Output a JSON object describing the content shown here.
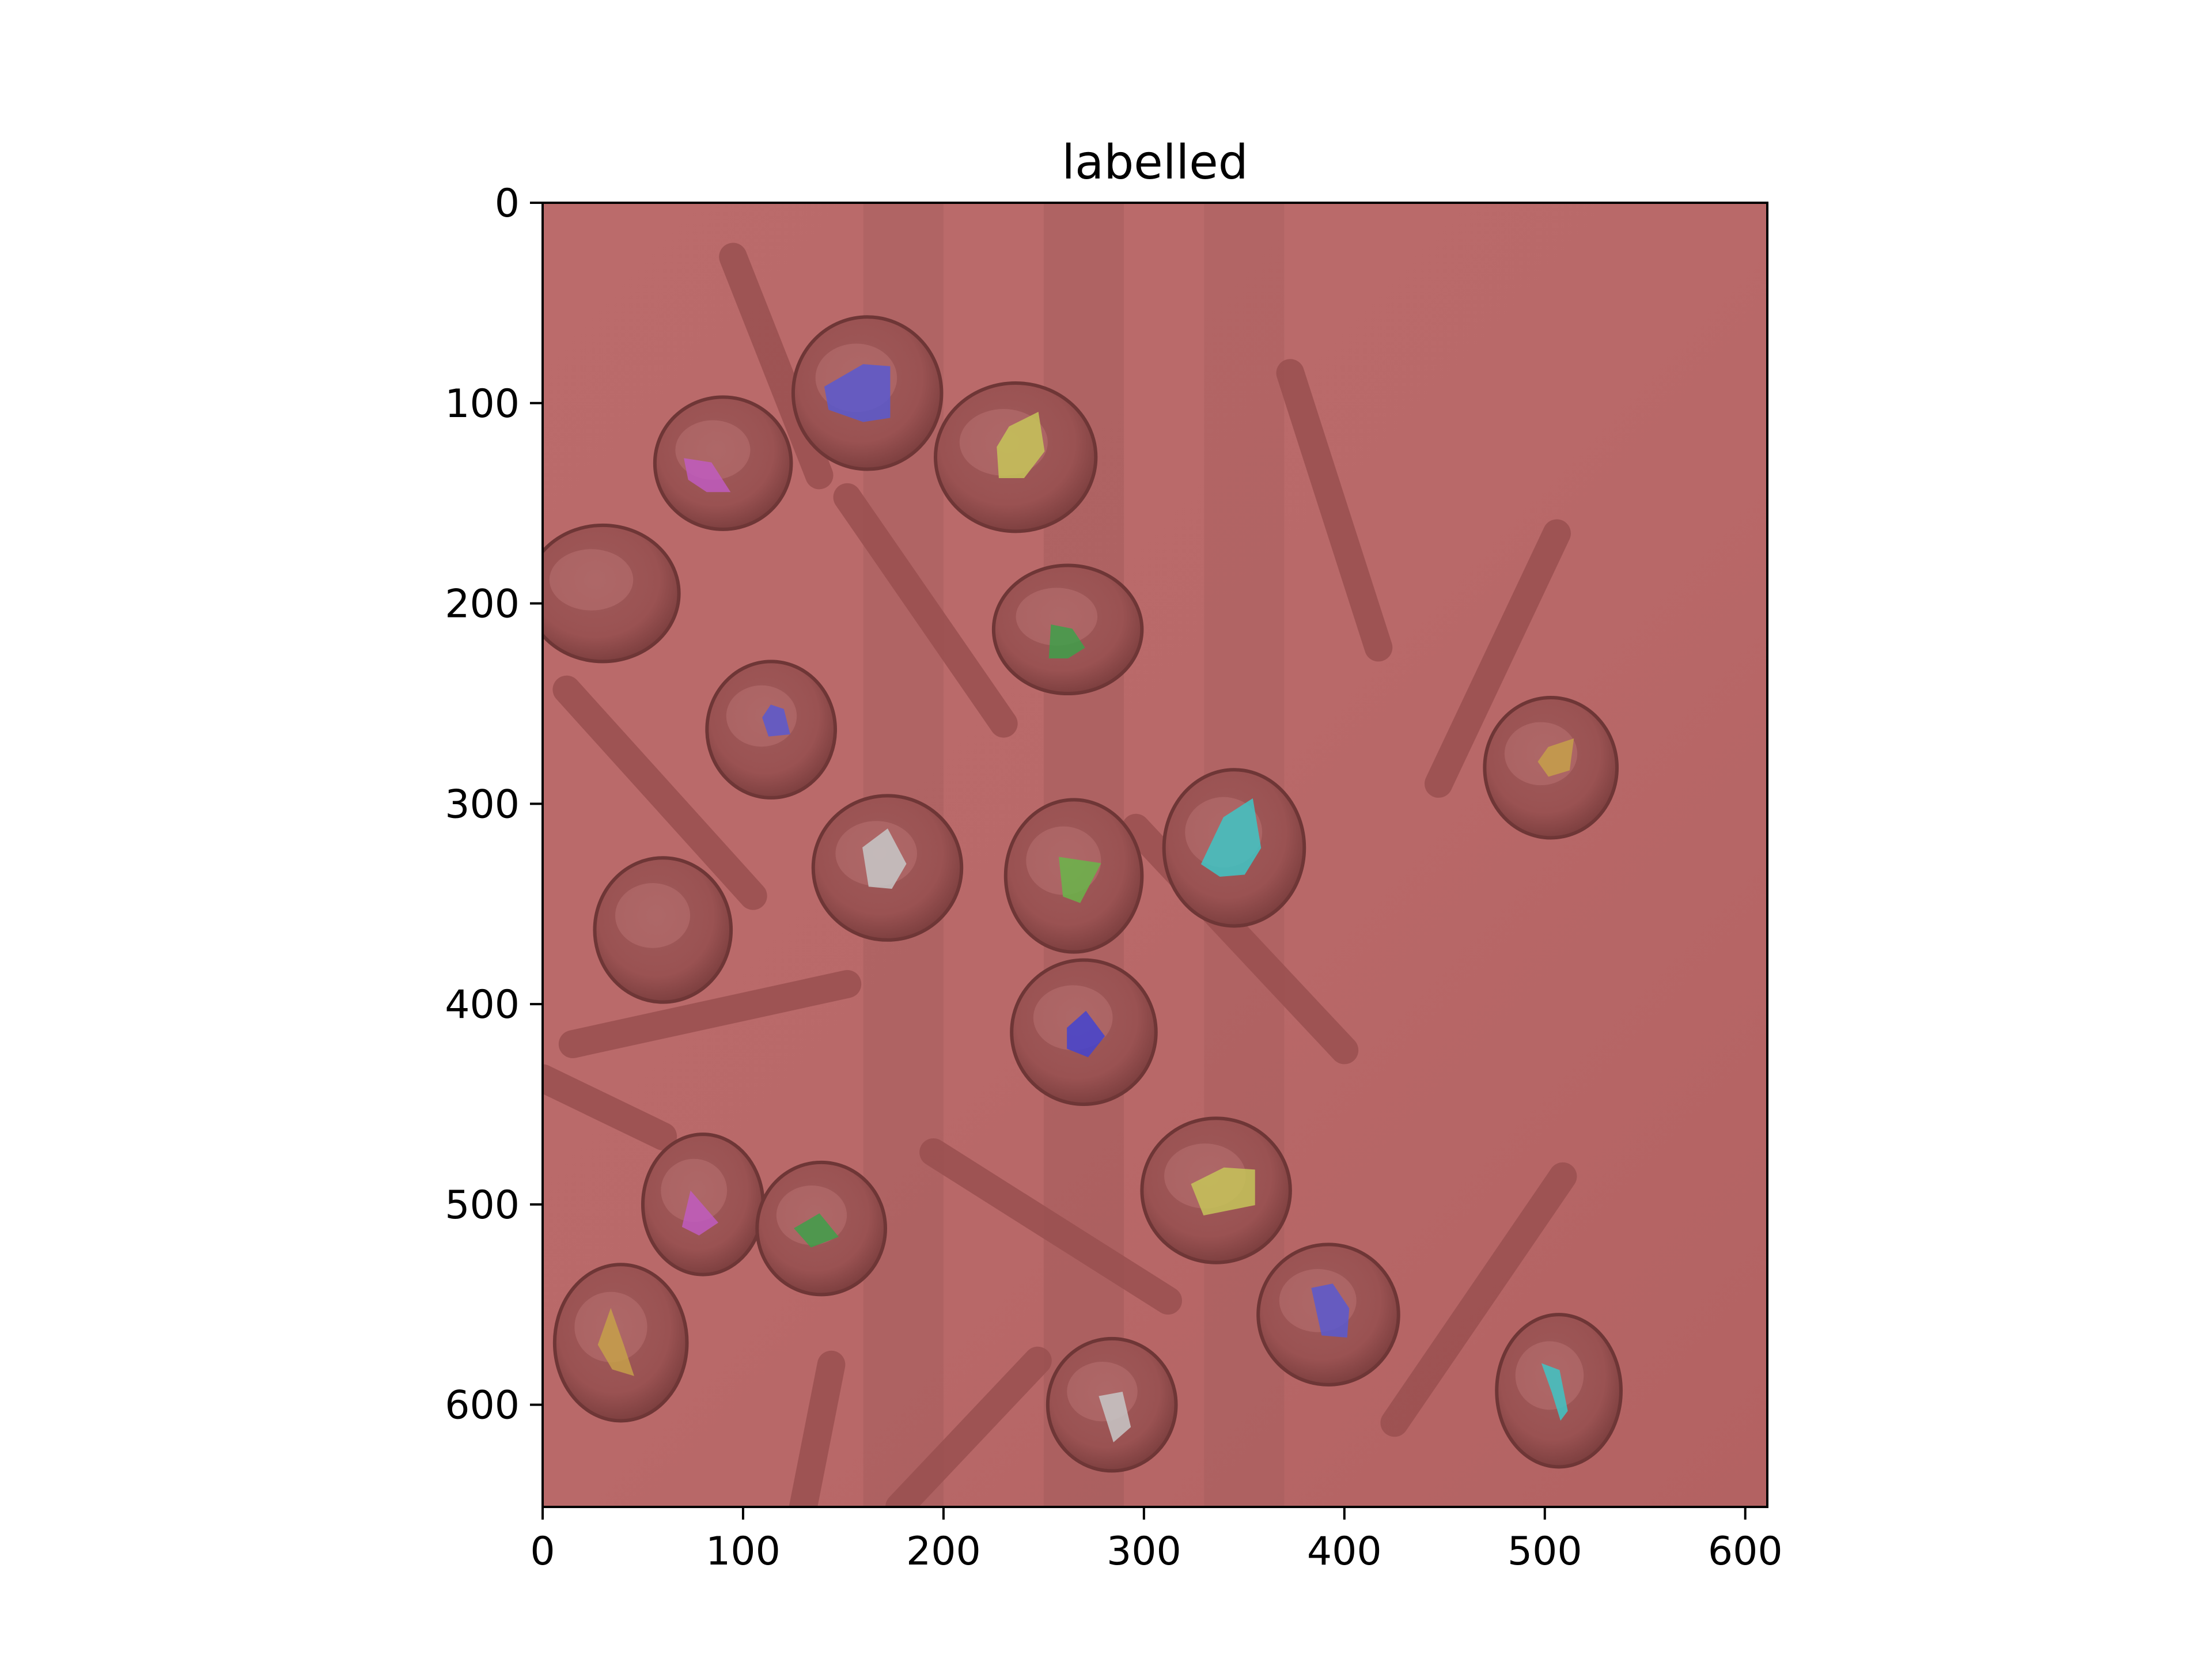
{
  "chart_data": {
    "type": "image",
    "title": "labelled",
    "xlabel": "",
    "ylabel": "",
    "xlim": [
      0,
      611
    ],
    "ylim": [
      651,
      0
    ],
    "x_ticks": [
      0,
      100,
      200,
      300,
      400,
      500,
      600
    ],
    "x_tick_labels": [
      "0",
      "100",
      "200",
      "300",
      "400",
      "500",
      "600"
    ],
    "y_ticks": [
      0,
      100,
      200,
      300,
      400,
      500,
      600
    ],
    "y_tick_labels": [
      "0",
      "100",
      "200",
      "300",
      "400",
      "500",
      "600"
    ],
    "grid": false,
    "background_label_color": "#b86767",
    "seeds": [
      {
        "cx": 90,
        "cy": 130,
        "rx": 34,
        "ry": 33
      },
      {
        "cx": 162,
        "cy": 95,
        "rx": 37,
        "ry": 38
      },
      {
        "cx": 236,
        "cy": 127,
        "rx": 40,
        "ry": 37
      },
      {
        "cx": 30,
        "cy": 195,
        "rx": 38,
        "ry": 34
      },
      {
        "cx": 262,
        "cy": 213,
        "rx": 37,
        "ry": 32
      },
      {
        "cx": 114,
        "cy": 263,
        "rx": 32,
        "ry": 34
      },
      {
        "cx": 503,
        "cy": 282,
        "rx": 33,
        "ry": 35
      },
      {
        "cx": 172,
        "cy": 332,
        "rx": 37,
        "ry": 36
      },
      {
        "cx": 265,
        "cy": 336,
        "rx": 34,
        "ry": 38
      },
      {
        "cx": 345,
        "cy": 322,
        "rx": 35,
        "ry": 39
      },
      {
        "cx": 60,
        "cy": 363,
        "rx": 34,
        "ry": 36
      },
      {
        "cx": 270,
        "cy": 414,
        "rx": 36,
        "ry": 36
      },
      {
        "cx": 80,
        "cy": 500,
        "rx": 30,
        "ry": 35
      },
      {
        "cx": 139,
        "cy": 512,
        "rx": 32,
        "ry": 33
      },
      {
        "cx": 336,
        "cy": 493,
        "rx": 37,
        "ry": 36
      },
      {
        "cx": 39,
        "cy": 569,
        "rx": 33,
        "ry": 39
      },
      {
        "cx": 392,
        "cy": 555,
        "rx": 35,
        "ry": 35
      },
      {
        "cx": 284,
        "cy": 600,
        "rx": 32,
        "ry": 33
      },
      {
        "cx": 507,
        "cy": 593,
        "rx": 31,
        "ry": 38
      }
    ],
    "rods": [
      {
        "x1": 95,
        "y1": 27,
        "x2": 138,
        "y2": 136
      },
      {
        "x1": 152,
        "y1": 147,
        "x2": 230,
        "y2": 260
      },
      {
        "x1": 373,
        "y1": 85,
        "x2": 417,
        "y2": 222
      },
      {
        "x1": 506,
        "y1": 165,
        "x2": 447,
        "y2": 290
      },
      {
        "x1": 12,
        "y1": 243,
        "x2": 105,
        "y2": 346
      },
      {
        "x1": 296,
        "y1": 312,
        "x2": 400,
        "y2": 423
      },
      {
        "x1": 15,
        "y1": 420,
        "x2": 152,
        "y2": 390
      },
      {
        "x1": 0,
        "y1": 437,
        "x2": 60,
        "y2": 466
      },
      {
        "x1": 195,
        "y1": 474,
        "x2": 312,
        "y2": 548
      },
      {
        "x1": 509,
        "y1": 486,
        "x2": 425,
        "y2": 609
      },
      {
        "x1": 144,
        "y1": 580,
        "x2": 130,
        "y2": 651
      },
      {
        "x1": 247,
        "y1": 578,
        "x2": 178,
        "y2": 651
      }
    ],
    "labelled_regions": [
      {
        "color": "#5a5ad0",
        "points": [
          [
            141,
            92
          ],
          [
            160,
            81
          ],
          [
            173,
            82
          ],
          [
            173,
            107
          ],
          [
            160,
            109
          ],
          [
            143,
            103
          ]
        ]
      },
      {
        "color": "#c6c55a",
        "points": [
          [
            233,
            112
          ],
          [
            247,
            105
          ],
          [
            250,
            124
          ],
          [
            240,
            137
          ],
          [
            228,
            137
          ],
          [
            227,
            122
          ]
        ]
      },
      {
        "color": "#c05cc0",
        "points": [
          [
            71,
            128
          ],
          [
            84,
            130
          ],
          [
            93,
            144
          ],
          [
            82,
            144
          ],
          [
            73,
            138
          ]
        ]
      },
      {
        "color": "#3fa04a",
        "points": [
          [
            254,
            211
          ],
          [
            264,
            213
          ],
          [
            270,
            222
          ],
          [
            262,
            227
          ],
          [
            253,
            227
          ]
        ]
      },
      {
        "color": "#5a5ad0",
        "points": [
          [
            114,
            251
          ],
          [
            120,
            253
          ],
          [
            123,
            265
          ],
          [
            113,
            266
          ],
          [
            110,
            257
          ]
        ]
      },
      {
        "color": "#c6a04a",
        "points": [
          [
            502,
            272
          ],
          [
            514,
            268
          ],
          [
            512,
            283
          ],
          [
            502,
            286
          ],
          [
            497,
            279
          ]
        ]
      },
      {
        "color": "#c8c8c8",
        "points": [
          [
            160,
            322
          ],
          [
            172,
            313
          ],
          [
            181,
            330
          ],
          [
            174,
            342
          ],
          [
            163,
            341
          ]
        ]
      },
      {
        "color": "#6ab64a",
        "points": [
          [
            258,
            327
          ],
          [
            278,
            330
          ],
          [
            268,
            349
          ],
          [
            260,
            346
          ]
        ]
      },
      {
        "color": "#3fc6c6",
        "points": [
          [
            329,
            330
          ],
          [
            340,
            307
          ],
          [
            354,
            298
          ],
          [
            358,
            322
          ],
          [
            350,
            335
          ],
          [
            338,
            336
          ]
        ]
      },
      {
        "color": "#4444d0",
        "points": [
          [
            262,
            412
          ],
          [
            271,
            404
          ],
          [
            280,
            416
          ],
          [
            272,
            426
          ],
          [
            262,
            422
          ]
        ]
      },
      {
        "color": "#c05cc0",
        "points": [
          [
            70,
            511
          ],
          [
            74,
            494
          ],
          [
            87,
            509
          ],
          [
            78,
            515
          ]
        ]
      },
      {
        "color": "#3fa04a",
        "points": [
          [
            126,
            512
          ],
          [
            138,
            505
          ],
          [
            147,
            516
          ],
          [
            134,
            521
          ]
        ]
      },
      {
        "color": "#c6c55a",
        "points": [
          [
            324,
            490
          ],
          [
            340,
            482
          ],
          [
            355,
            483
          ],
          [
            355,
            500
          ],
          [
            330,
            505
          ]
        ]
      },
      {
        "color": "#c6a04a",
        "points": [
          [
            28,
            570
          ],
          [
            34,
            553
          ],
          [
            40,
            570
          ],
          [
            45,
            585
          ],
          [
            35,
            582
          ]
        ]
      },
      {
        "color": "#5a5ad0",
        "points": [
          [
            384,
            542
          ],
          [
            394,
            540
          ],
          [
            402,
            552
          ],
          [
            401,
            566
          ],
          [
            389,
            565
          ]
        ]
      },
      {
        "color": "#c8c8c8",
        "points": [
          [
            278,
            596
          ],
          [
            289,
            594
          ],
          [
            293,
            611
          ],
          [
            285,
            618
          ]
        ]
      },
      {
        "color": "#3fc6c6",
        "points": [
          [
            499,
            580
          ],
          [
            507,
            583
          ],
          [
            511,
            603
          ],
          [
            508,
            607
          ],
          [
            504,
            594
          ]
        ]
      }
    ]
  }
}
